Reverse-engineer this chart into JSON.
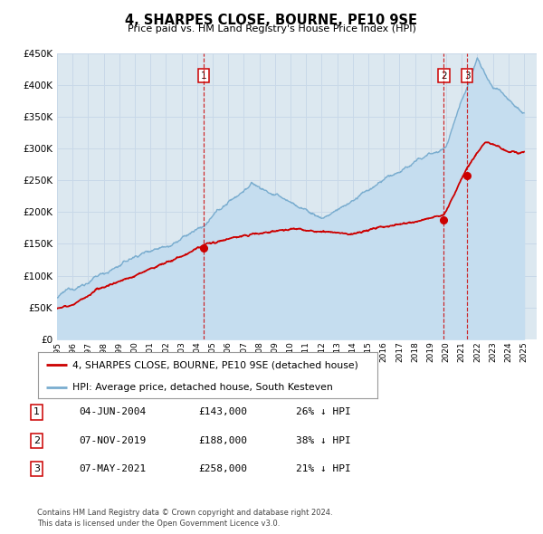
{
  "title": "4, SHARPES CLOSE, BOURNE, PE10 9SE",
  "subtitle": "Price paid vs. HM Land Registry's House Price Index (HPI)",
  "legend_line1": "4, SHARPES CLOSE, BOURNE, PE10 9SE (detached house)",
  "legend_line2": "HPI: Average price, detached house, South Kesteven",
  "footer1": "Contains HM Land Registry data © Crown copyright and database right 2024.",
  "footer2": "This data is licensed under the Open Government Licence v3.0.",
  "red_color": "#cc0000",
  "blue_color": "#7aadcf",
  "blue_fill": "#c5ddef",
  "grid_color": "#c8d8e8",
  "bg_color": "#dce8f0",
  "ylim": [
    0,
    450000
  ],
  "yticks": [
    0,
    50000,
    100000,
    150000,
    200000,
    250000,
    300000,
    350000,
    400000,
    450000
  ],
  "sales": [
    {
      "date_num": 2004.43,
      "price": 143000,
      "label": "1"
    },
    {
      "date_num": 2019.85,
      "price": 188000,
      "label": "2"
    },
    {
      "date_num": 2021.35,
      "price": 258000,
      "label": "3"
    }
  ],
  "table_rows": [
    {
      "num": "1",
      "date": "04-JUN-2004",
      "price": "£143,000",
      "pct": "26% ↓ HPI"
    },
    {
      "num": "2",
      "date": "07-NOV-2019",
      "price": "£188,000",
      "pct": "38% ↓ HPI"
    },
    {
      "num": "3",
      "date": "07-MAY-2021",
      "price": "£258,000",
      "pct": "21% ↓ HPI"
    }
  ]
}
